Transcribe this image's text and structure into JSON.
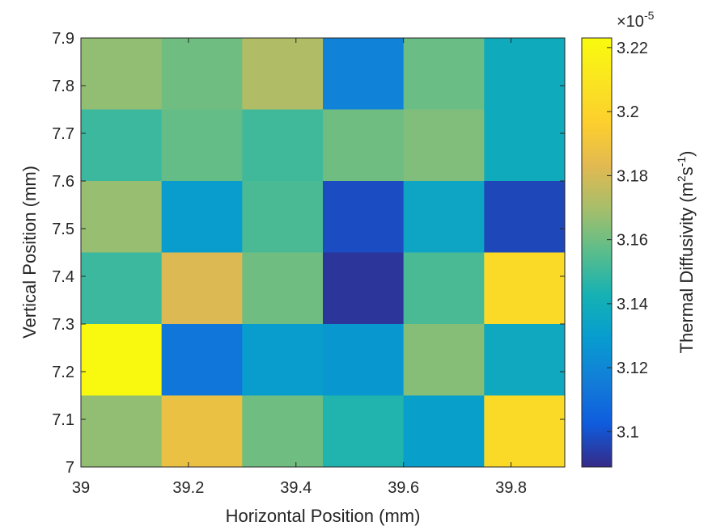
{
  "chart_data": {
    "type": "heatmap",
    "xlabel": "Horizontal Position (mm)",
    "ylabel": "Vertical Position (mm)",
    "xlim": [
      39,
      39.9
    ],
    "ylim": [
      7,
      7.9
    ],
    "x_ticks": [
      "39",
      "39.2",
      "39.4",
      "39.6",
      "39.8"
    ],
    "y_ticks": [
      "7",
      "7.1",
      "7.2",
      "7.3",
      "7.4",
      "7.5",
      "7.6",
      "7.7",
      "7.8",
      "7.9"
    ],
    "x_cell_edges": [
      39,
      39.15,
      39.3,
      39.45,
      39.6,
      39.75,
      39.9
    ],
    "y_cell_edges": [
      7,
      7.15,
      7.3,
      7.45,
      7.6,
      7.75,
      7.9
    ],
    "values_top_to_bottom": [
      [
        3.166,
        3.16,
        3.172,
        3.118,
        3.159,
        3.138
      ],
      [
        3.15,
        3.158,
        3.151,
        3.16,
        3.163,
        3.138
      ],
      [
        3.167,
        3.13,
        3.153,
        3.098,
        3.135,
        3.097
      ],
      [
        3.15,
        3.182,
        3.16,
        3.092,
        3.153,
        3.203
      ],
      [
        3.222,
        3.113,
        3.13,
        3.127,
        3.164,
        3.137
      ],
      [
        3.166,
        3.188,
        3.16,
        3.145,
        3.131,
        3.203
      ]
    ],
    "colorbar": {
      "label_main": "Thermal Diffusivity (m",
      "label_sup1": "2",
      "label_mid": "s",
      "label_sup2": "-1",
      "label_end": ")",
      "range": [
        3.089,
        3.223
      ],
      "ticks": [
        "3.1",
        "3.12",
        "3.14",
        "3.16",
        "3.18",
        "3.2",
        "3.22"
      ],
      "tick_values": [
        3.1,
        3.12,
        3.14,
        3.16,
        3.18,
        3.2,
        3.22
      ],
      "multiplier_base": "×10",
      "multiplier_exp": "-5",
      "colormap": "parula"
    }
  }
}
